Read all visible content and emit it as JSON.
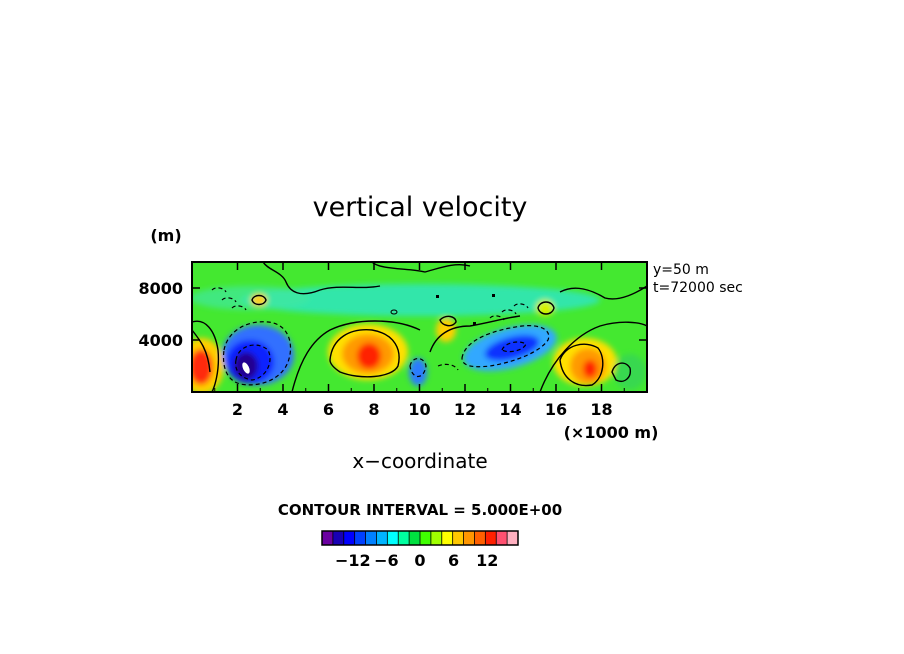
{
  "chart_data": {
    "type": "heatmap",
    "title": "vertical velocity",
    "xlabel": "x−coordinate",
    "x_units": "(×1000 m)",
    "y_units": "(m)",
    "xlim": [
      0,
      20
    ],
    "ylim": [
      0,
      10000
    ],
    "x_ticks": [
      "2",
      "4",
      "6",
      "8",
      "10",
      "12",
      "14",
      "16",
      "18"
    ],
    "x_tick_values": [
      2,
      4,
      6,
      8,
      10,
      12,
      14,
      16,
      18
    ],
    "y_ticks": [
      "4000",
      "8000"
    ],
    "y_tick_values": [
      4000,
      8000
    ],
    "annotations": [
      "y=50 m",
      "t=72000 sec"
    ],
    "contour_interval_label": "CONTOUR INTERVAL = 5.000E+00",
    "colorbar": {
      "tick_labels": [
        "−12",
        "−6",
        "0",
        "6",
        "12"
      ],
      "tick_values": [
        -12,
        -6,
        0,
        6,
        12
      ],
      "colors": [
        "#6a00a0",
        "#1800b4",
        "#0000ff",
        "#0040ff",
        "#0080ff",
        "#00b4ff",
        "#00ffff",
        "#00ffa0",
        "#00e040",
        "#40ff00",
        "#a0ff00",
        "#ffff00",
        "#ffc800",
        "#ff9600",
        "#ff6000",
        "#ff2000",
        "#ff5070",
        "#ffb0c0"
      ]
    },
    "features": [
      {
        "x": 0.4,
        "z": 1900,
        "peak": 14,
        "sign": "positive"
      },
      {
        "x": 2.5,
        "z": 1400,
        "peak": -14,
        "sign": "negative"
      },
      {
        "x": 3.5,
        "z": 2600,
        "peak": -8,
        "sign": "negative"
      },
      {
        "x": 7.7,
        "z": 3000,
        "peak": 12,
        "sign": "positive"
      },
      {
        "x": 11.2,
        "z": 4600,
        "peak": 5,
        "sign": "positive"
      },
      {
        "x": 14.1,
        "z": 3600,
        "peak": -9,
        "sign": "negative"
      },
      {
        "x": 10.0,
        "z": 1400,
        "peak": -5,
        "sign": "negative"
      },
      {
        "x": 17.2,
        "z": 2000,
        "peak": 11,
        "sign": "positive"
      },
      {
        "x": 3.2,
        "z": 7100,
        "peak": 5,
        "sign": "positive"
      },
      {
        "x": 15.8,
        "z": 6500,
        "peak": 4,
        "sign": "positive"
      },
      {
        "x": 8.5,
        "z": 8300,
        "peak": -3,
        "sign": "negative"
      }
    ]
  }
}
